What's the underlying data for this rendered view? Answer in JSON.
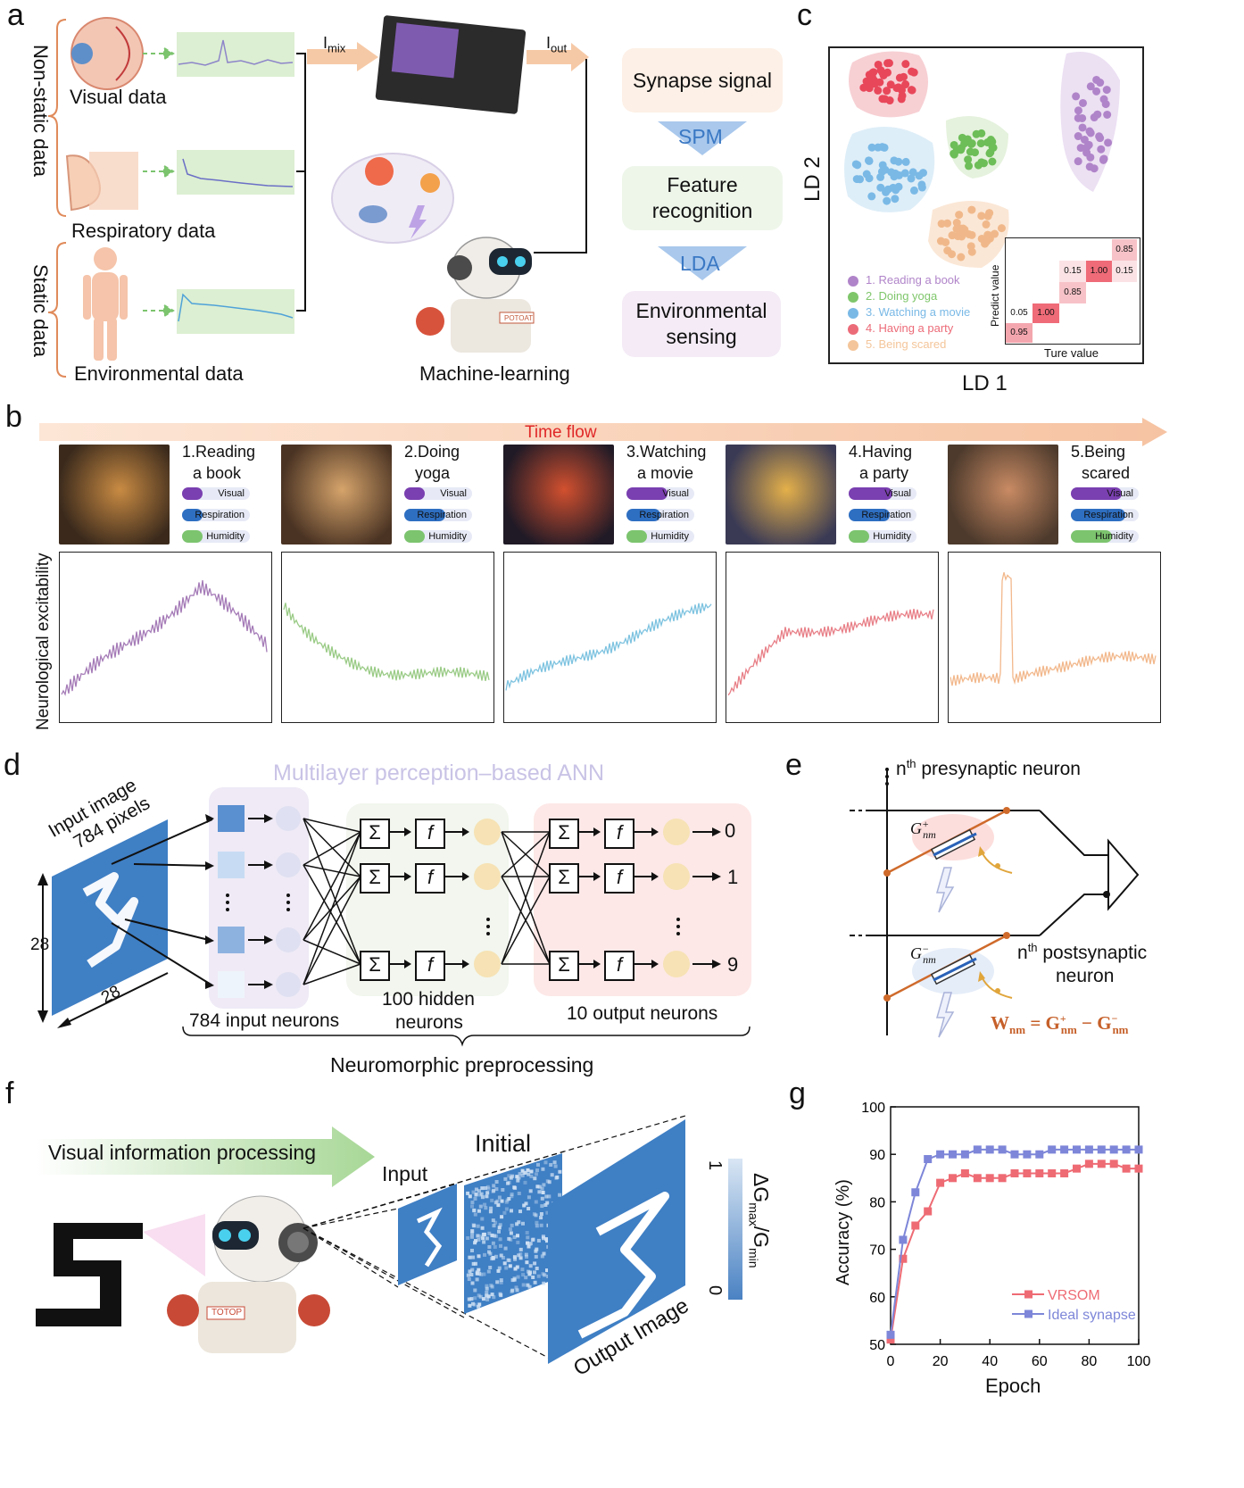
{
  "panels": {
    "a": "a",
    "b": "b",
    "c": "c",
    "d": "d",
    "e": "e",
    "f": "f",
    "g": "g"
  },
  "panel_a": {
    "nonstatic_label": "Non-static data",
    "static_label": "Static data",
    "visual": "Visual data",
    "respiratory": "Respiratory data",
    "environmental": "Environmental data",
    "imix": "I",
    "imix_sub": "mix",
    "iout": "I",
    "iout_sub": "out",
    "ml": "Machine-learning",
    "robot_tag": "POTOAT",
    "flow": [
      "Synapse signal",
      "SPM",
      "Feature recognition",
      "LDA",
      "Environmental sensing"
    ],
    "colors": {
      "syn": "#fdf0e6",
      "feat": "#eef6ea",
      "env": "#f4ebf6",
      "arrow": "#a9c8ec"
    }
  },
  "panel_c": {
    "xlabel": "LD 1",
    "ylabel": "LD 2",
    "legend": [
      "1. Reading a book",
      "2. Doing yoga",
      "3. Watching a movie",
      "4. Having a party",
      "5. Being scared"
    ],
    "legend_colors": [
      "#b084c9",
      "#7fc66b",
      "#7ab9e6",
      "#ec6b78",
      "#f4c59a"
    ],
    "confusion": {
      "xlabel": "Ture value",
      "ylabel": "Predict value",
      "cells": [
        "0.85",
        "0.15",
        "1.00",
        "0.15",
        "0.85",
        "0.05",
        "1.00",
        "0.95"
      ]
    }
  },
  "panel_b": {
    "timeflow": "Time flow",
    "ylabel": "Neurological excitability",
    "activities": [
      {
        "title1": "1.Reading",
        "title2": "a book"
      },
      {
        "title1": "2.Doing",
        "title2": "yoga"
      },
      {
        "title1": "3.Watching",
        "title2": "a movie"
      },
      {
        "title1": "4.Having",
        "title2": "a party"
      },
      {
        "title1": "5.Being",
        "title2": "scared"
      }
    ],
    "tags": [
      "Visual",
      "Respiration",
      "Humidity"
    ],
    "tag_levels": [
      [
        0.3,
        0.3,
        0.3
      ],
      [
        0.3,
        0.6,
        0.3
      ],
      [
        0.6,
        0.5,
        0.3
      ],
      [
        0.65,
        0.6,
        0.3
      ],
      [
        0.75,
        0.8,
        0.6
      ]
    ],
    "trace_colors": [
      "#a57bb7",
      "#9acb86",
      "#7ec3e0",
      "#e88088",
      "#f2b88c"
    ]
  },
  "panel_d": {
    "title": "Multilayer perception–based ANN",
    "input1": "Input image",
    "input2": "784 pixels",
    "dim": "28",
    "sum": "Σ",
    "f": "f",
    "outputs": [
      "0",
      "1",
      "9"
    ],
    "input_neurons": "784 input neurons",
    "hidden1": "100 hidden",
    "hidden2": "neurons",
    "output_neurons": "10 output neurons",
    "preprocess": "Neuromorphic preprocessing"
  },
  "panel_e": {
    "pre": "presynaptic neuron",
    "pre_n": "n",
    "pre_sup": "th",
    "post1": "postsynaptic",
    "post2": "neuron",
    "post_n": "n",
    "post_sup": "th",
    "gplus": "G",
    "gplus_sub": "nm",
    "gplus_sup": "+",
    "gminus": "G",
    "gminus_sub": "nm",
    "gminus_sup": "−",
    "eq_left": "W",
    "eq_left_sub": "nm",
    "eq_mid": " = G",
    "eq_mid_sub": "nm",
    "eq_mid_sup": "+",
    "eq_right": " − G",
    "eq_right_sub": "nm",
    "eq_right_sup": "−"
  },
  "panel_f": {
    "banner": "Visual information processing",
    "input": "Input",
    "initial": "Initial",
    "output": "Output Image",
    "cbar_top": "1",
    "cbar_bottom": "0",
    "cbar_label": "ΔG",
    "cbar_label_sub1": "max",
    "cbar_label_mid": "/G",
    "cbar_label_sub2": "min",
    "robot_tag": "TOTOP"
  },
  "chart_data": {
    "type": "line",
    "xlabel": "Epoch",
    "ylabel": "Accuracy (%)",
    "xlim": [
      0,
      100
    ],
    "ylim": [
      50,
      100
    ],
    "xticks": [
      "0",
      "20",
      "40",
      "60",
      "80",
      "100"
    ],
    "yticks": [
      "50",
      "60",
      "70",
      "80",
      "90",
      "100"
    ],
    "legend_position": "bottom-right",
    "series": [
      {
        "name": "VRSOM",
        "color": "#ee6b74",
        "x": [
          0,
          5,
          10,
          15,
          20,
          25,
          30,
          35,
          40,
          45,
          50,
          55,
          60,
          65,
          70,
          75,
          80,
          85,
          90,
          95,
          100
        ],
        "y": [
          51,
          68,
          75,
          78,
          84,
          85,
          86,
          85,
          85,
          85,
          86,
          86,
          86,
          86,
          86,
          87,
          88,
          88,
          88,
          87,
          87
        ]
      },
      {
        "name": "Ideal synapse",
        "color": "#7d86d8",
        "x": [
          0,
          5,
          10,
          15,
          20,
          25,
          30,
          35,
          40,
          45,
          50,
          55,
          60,
          65,
          70,
          75,
          80,
          85,
          90,
          95,
          100
        ],
        "y": [
          52,
          72,
          82,
          89,
          90,
          90,
          90,
          91,
          91,
          91,
          90,
          90,
          90,
          91,
          91,
          91,
          91,
          91,
          91,
          91,
          91
        ]
      }
    ]
  }
}
